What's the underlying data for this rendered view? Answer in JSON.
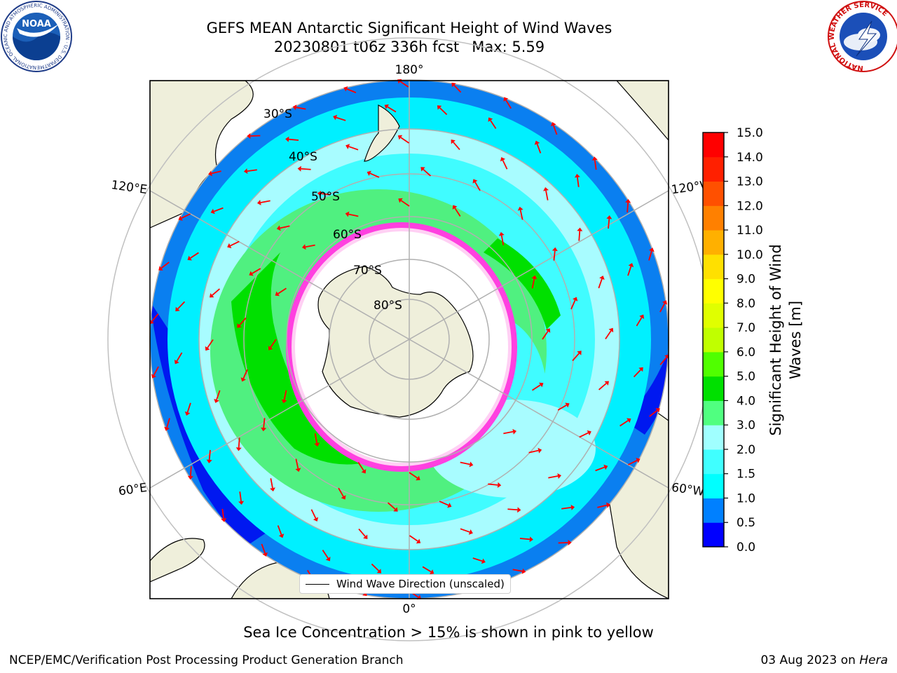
{
  "title": {
    "line1": "GEFS MEAN Antarctic Significant Height of Wind Waves",
    "line2": "20230801 t06z 336h fcst",
    "max_label": "Max: 5.59"
  },
  "logos": {
    "left": {
      "icon": "noaa-logo",
      "text": "NOAA",
      "ring_text": "NATIONAL OCEANIC AND ATMOSPHERIC ADMINISTRATION · U.S. DEPARTMENT OF COMMERCE"
    },
    "right": {
      "icon": "nws-logo",
      "ring_text": "NATIONAL WEATHER SERVICE"
    }
  },
  "map": {
    "longitude_labels": {
      "top": "180°",
      "bottom": "0°",
      "left_upper": "120°E",
      "left_lower": "60°E",
      "right_upper": "120°W",
      "right_lower": "60°W"
    },
    "latitude_labels": [
      "30°S",
      "40°S",
      "50°S",
      "60°S",
      "70°S",
      "80°S"
    ],
    "legend_label": "Wind Wave Direction (unscaled)",
    "arrow_color": "#ff0000"
  },
  "colorbar": {
    "label": "Significant Height of Wind Waves [m]",
    "ticks": [
      "0.0",
      "0.5",
      "1.0",
      "1.5",
      "2.0",
      "3.0",
      "4.0",
      "5.0",
      "6.0",
      "7.0",
      "8.0",
      "9.0",
      "10.0",
      "11.0",
      "12.0",
      "13.0",
      "14.0",
      "15.0"
    ],
    "colors": [
      "#0000ff",
      "#0080ff",
      "#00ffff",
      "#40ffff",
      "#a0ffff",
      "#50ff80",
      "#00e000",
      "#50ff00",
      "#c0ff00",
      "#e0ff00",
      "#ffff00",
      "#ffe000",
      "#ffb000",
      "#ff8000",
      "#ff5000",
      "#ff2000",
      "#ff0000"
    ]
  },
  "footer": {
    "note": "Sea Ice Concentration > 15% is shown in pink to yellow",
    "credit": "NCEP/EMC/Verification Post Processing Product Generation Branch",
    "date": "03 Aug 2023 on",
    "machine": "Hera"
  }
}
